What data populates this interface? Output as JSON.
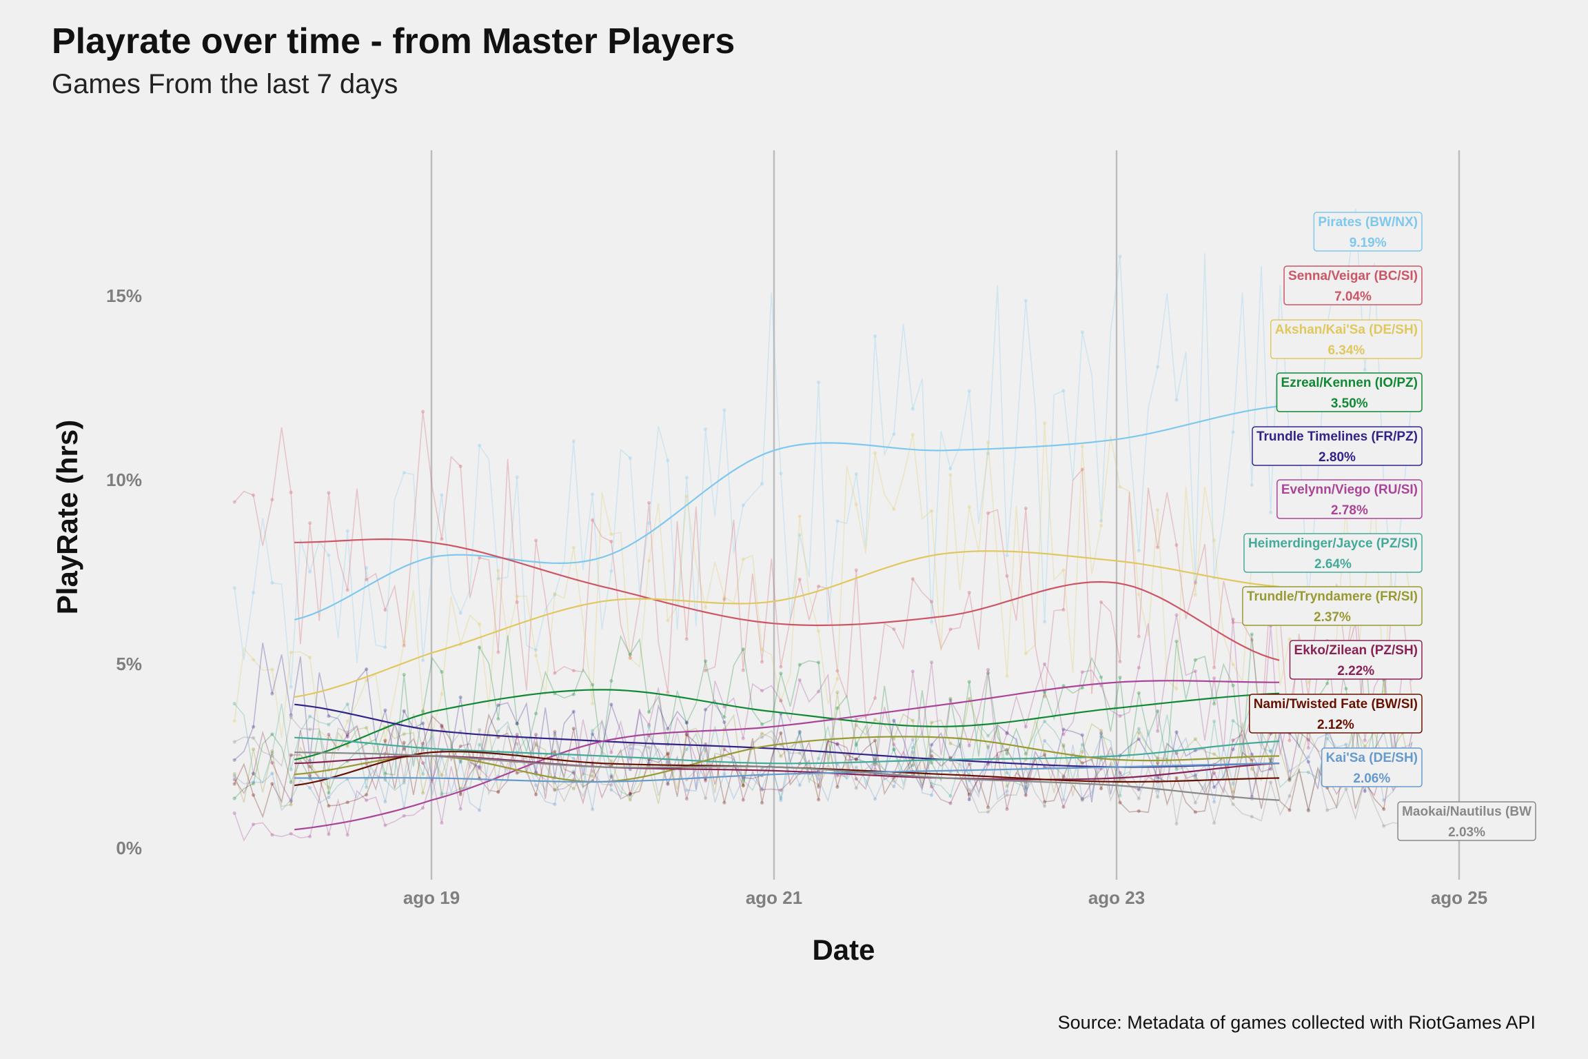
{
  "header": {
    "title": "Playrate over time - from Master Players",
    "subtitle": "Games From the last 7 days"
  },
  "caption": "Source: Metadata of games collected with RiotGames API",
  "chart_data": {
    "type": "line",
    "title": "Playrate over time - from Master Players",
    "subtitle": "Games From the last 7 days",
    "xlabel": "Date",
    "ylabel": "PlayRate (hrs)",
    "x_ticks": [
      "ago 19",
      "ago 21",
      "ago 23",
      "ago 25"
    ],
    "x_tick_values": [
      19,
      21,
      23,
      25
    ],
    "y_ticks": [
      "0%",
      "5%",
      "10%",
      "15%"
    ],
    "y_tick_values": [
      0,
      5,
      10,
      15
    ],
    "xlim": [
      17.7,
      25.5
    ],
    "ylim": [
      -0.5,
      18.5
    ],
    "grid": "vertical major lines only",
    "legend": "direct labels at right end of lines",
    "smooth_x": [
      18.2,
      19.0,
      20.0,
      21.0,
      22.0,
      23.0,
      23.95
    ],
    "series": [
      {
        "name": "Pirates (BW/NX)",
        "label": "9.19%",
        "color": "#7ec8ee",
        "smooth": [
          6.2,
          7.9,
          7.9,
          10.8,
          10.8,
          11.1,
          12.0
        ]
      },
      {
        "name": "Senna/Veigar (BC/SI)",
        "label": "7.04%",
        "color": "#cc5566",
        "smooth": [
          8.3,
          8.3,
          7.1,
          6.1,
          6.3,
          7.2,
          5.1
        ]
      },
      {
        "name": "Akshan/Kai'Sa (DE/SH)",
        "label": "6.34%",
        "color": "#e0c85e",
        "smooth": [
          4.1,
          5.3,
          6.7,
          6.7,
          8.0,
          7.8,
          7.1
        ]
      },
      {
        "name": "Ezreal/Kennen (IO/PZ)",
        "label": "3.50%",
        "color": "#118833",
        "smooth": [
          2.4,
          3.7,
          4.3,
          3.7,
          3.3,
          3.8,
          4.2
        ]
      },
      {
        "name": "Trundle Timelines (FR/PZ)",
        "label": "2.80%",
        "color": "#332288",
        "smooth": [
          3.9,
          3.2,
          2.9,
          2.7,
          2.4,
          2.2,
          2.3
        ]
      },
      {
        "name": "Evelynn/Viego (RU/SI)",
        "label": "2.78%",
        "color": "#aa4499",
        "smooth": [
          0.5,
          1.3,
          2.9,
          3.3,
          3.9,
          4.5,
          4.5
        ]
      },
      {
        "name": "Heimerdinger/Jayce (PZ/SI)",
        "label": "2.64%",
        "color": "#44aa99",
        "smooth": [
          3.0,
          2.7,
          2.5,
          2.3,
          2.4,
          2.5,
          2.9
        ]
      },
      {
        "name": "Trundle/Tryndamere (FR/SI)",
        "label": "2.37%",
        "color": "#999933",
        "smooth": [
          2.0,
          2.5,
          1.8,
          2.8,
          3.0,
          2.4,
          2.5
        ]
      },
      {
        "name": "Ekko/Zilean (PZ/SH)",
        "label": "2.22%",
        "color": "#882255",
        "smooth": [
          2.3,
          2.5,
          2.2,
          2.1,
          1.9,
          1.9,
          2.3
        ]
      },
      {
        "name": "Nami/Twisted Fate (BW/SI)",
        "label": "2.12%",
        "color": "#661100",
        "smooth": [
          1.7,
          2.6,
          2.3,
          2.2,
          2.0,
          1.8,
          1.9
        ]
      },
      {
        "name": "Kai'Sa (DE/SH)",
        "label": "2.06%",
        "color": "#6699cc",
        "smooth": [
          1.9,
          1.9,
          1.8,
          2.0,
          2.1,
          2.2,
          2.3
        ]
      },
      {
        "name": "Maokai/Nautilus (BW",
        "label": "2.03%",
        "color": "#888888",
        "smooth": [
          2.6,
          2.5,
          2.2,
          2.2,
          1.9,
          1.7,
          1.3
        ]
      }
    ]
  }
}
